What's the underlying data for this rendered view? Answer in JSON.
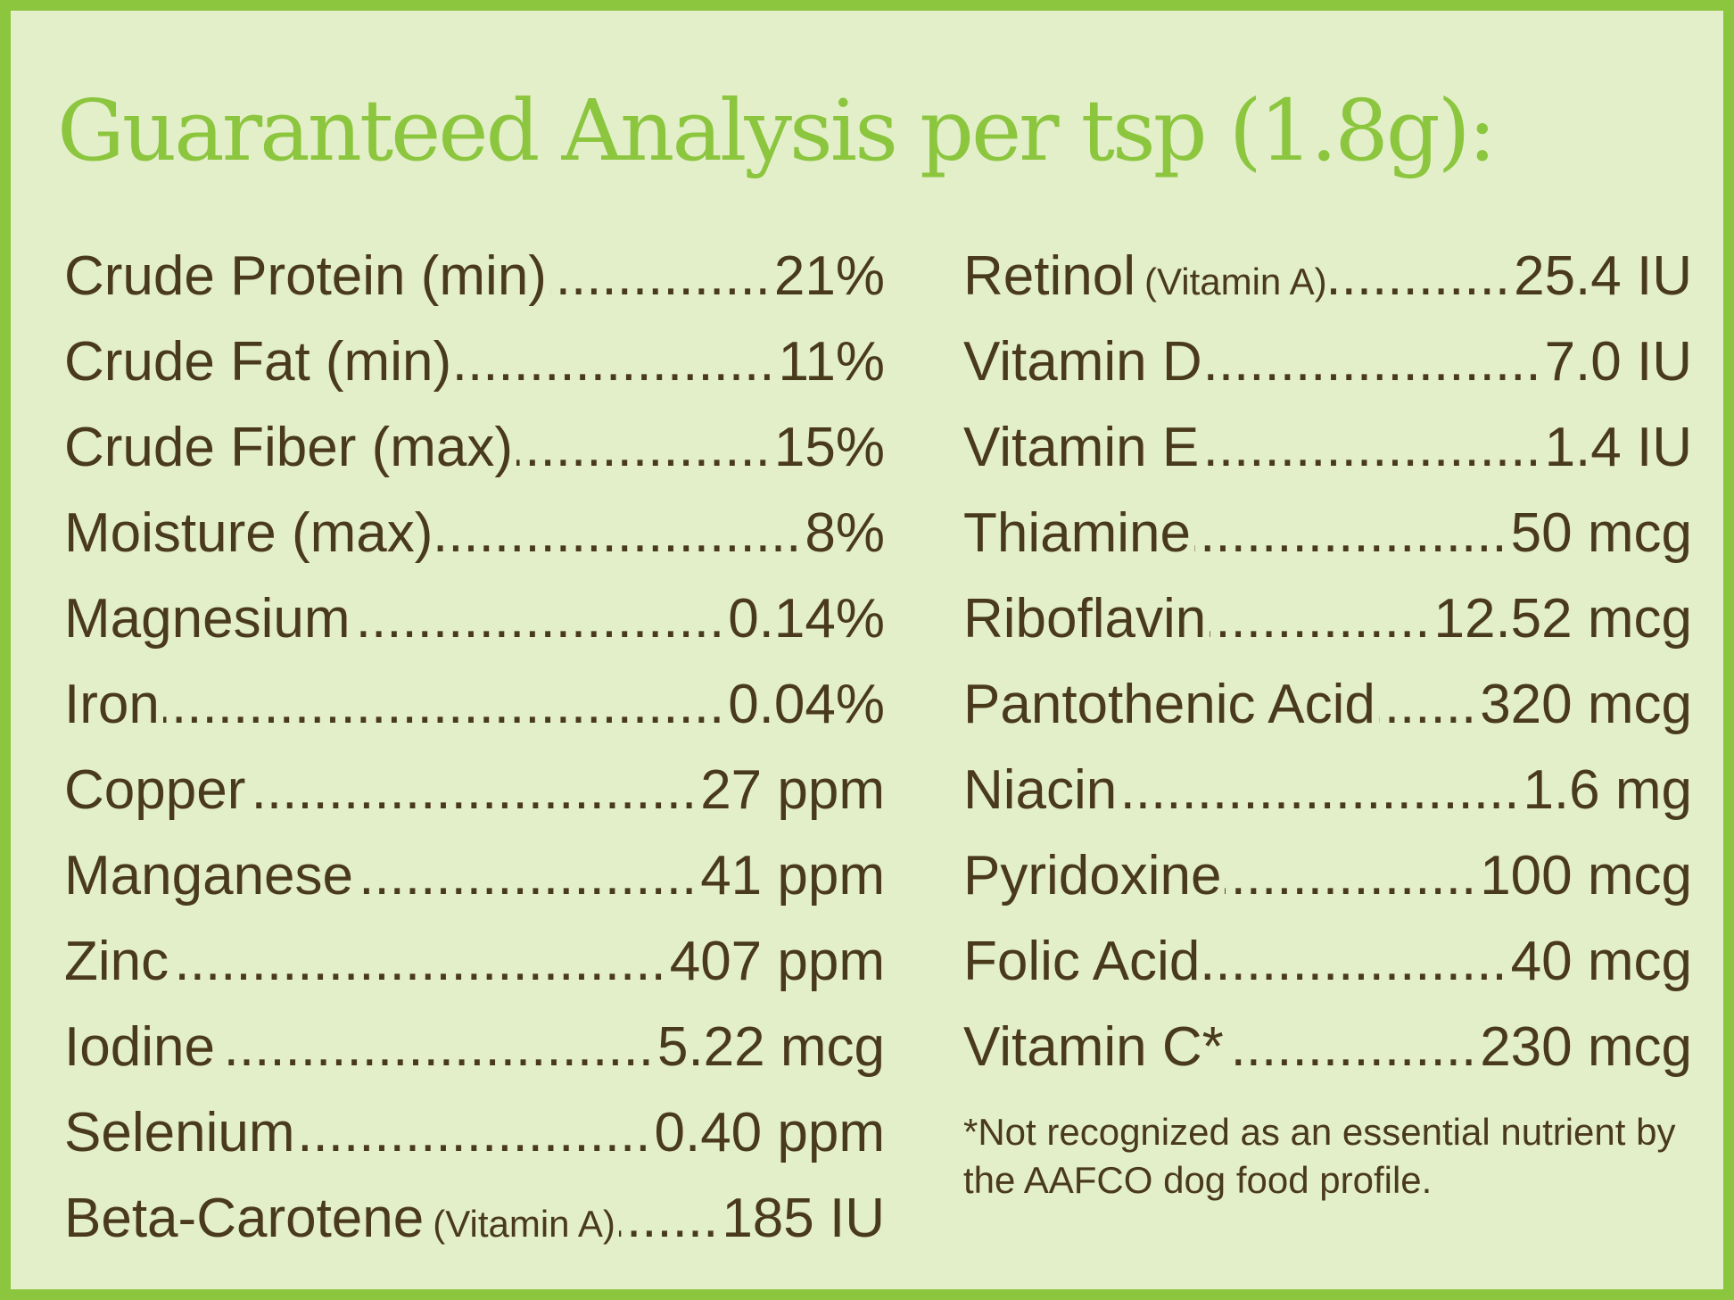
{
  "title": "Guaranteed Analysis per tsp (1.8g):",
  "left_column": [
    {
      "label": "Crude Protein (min)",
      "note": "",
      "value": "21%"
    },
    {
      "label": "Crude Fat (min)",
      "note": "",
      "value": "11%"
    },
    {
      "label": "Crude Fiber (max)",
      "note": "",
      "value": "15%"
    },
    {
      "label": "Moisture (max)",
      "note": "",
      "value": "8%"
    },
    {
      "label": "Magnesium",
      "note": "",
      "value": "0.14%"
    },
    {
      "label": "Iron",
      "note": "",
      "value": "0.04%"
    },
    {
      "label": "Copper",
      "note": "",
      "value": "27 ppm"
    },
    {
      "label": "Manganese",
      "note": "",
      "value": "41 ppm"
    },
    {
      "label": "Zinc",
      "note": "",
      "value": "407 ppm"
    },
    {
      "label": "Iodine",
      "note": "",
      "value": "5.22 mcg"
    },
    {
      "label": "Selenium",
      "note": "",
      "value": "0.40 ppm"
    },
    {
      "label": "Beta-Carotene",
      "note": "(Vitamin A)",
      "value": "185 IU"
    }
  ],
  "right_column": [
    {
      "label": "Retinol",
      "note": "(Vitamin A)",
      "value": "25.4 IU"
    },
    {
      "label": "Vitamin D",
      "note": "",
      "value": "7.0 IU"
    },
    {
      "label": "Vitamin E",
      "note": "",
      "value": "1.4 IU"
    },
    {
      "label": "Thiamine",
      "note": "",
      "value": "50 mcg"
    },
    {
      "label": "Riboflavin",
      "note": "",
      "value": "12.52 mcg"
    },
    {
      "label": "Pantothenic Acid",
      "note": "",
      "value": "320 mcg"
    },
    {
      "label": "Niacin",
      "note": "",
      "value": "1.6 mg"
    },
    {
      "label": "Pyridoxine",
      "note": "",
      "value": "100 mcg"
    },
    {
      "label": "Folic Acid",
      "note": "",
      "value": "40 mcg"
    },
    {
      "label": "Vitamin C*",
      "note": "",
      "value": "230 mcg"
    }
  ],
  "footnote": "*Not recognized as an essential nutrient by the AAFCO dog food profile.",
  "colors": {
    "border": "#8cc63f",
    "background": "#e3efc9",
    "title": "#8cc63f",
    "text": "#4a3a1c"
  }
}
